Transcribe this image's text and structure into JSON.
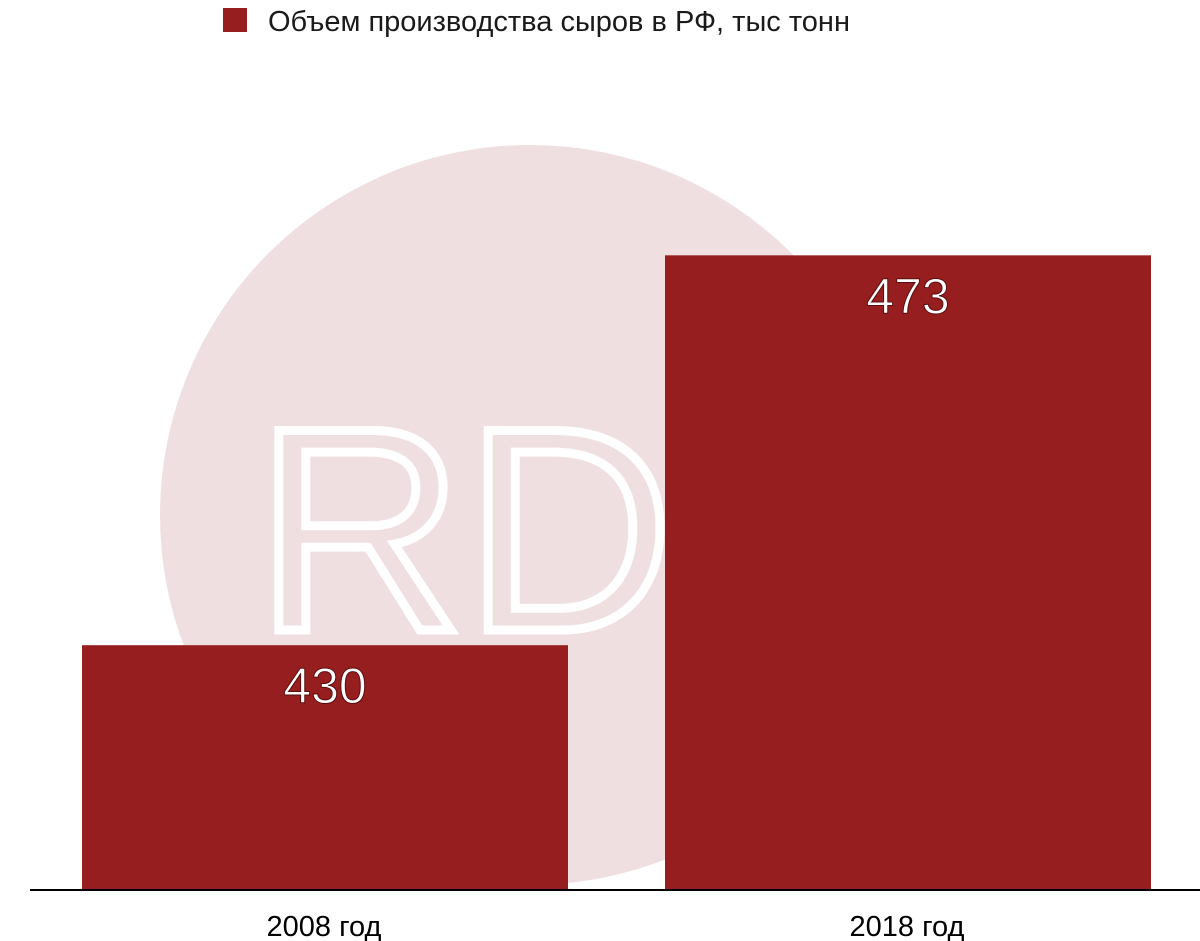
{
  "chart_data": {
    "type": "bar",
    "categories": [
      "2008 год",
      "2018 год"
    ],
    "series": [
      {
        "name": "Объем производства сыров в РФ, тыс тонн",
        "values": [
          430,
          473
        ]
      }
    ],
    "data_labels": [
      "430",
      "473"
    ],
    "legend": "top",
    "grid": false,
    "ylim": [
      403,
      478
    ],
    "colors": {
      "bar": "#961e1f",
      "watermark": "#f0dfe1"
    }
  },
  "watermark": {
    "text": "RDP"
  }
}
